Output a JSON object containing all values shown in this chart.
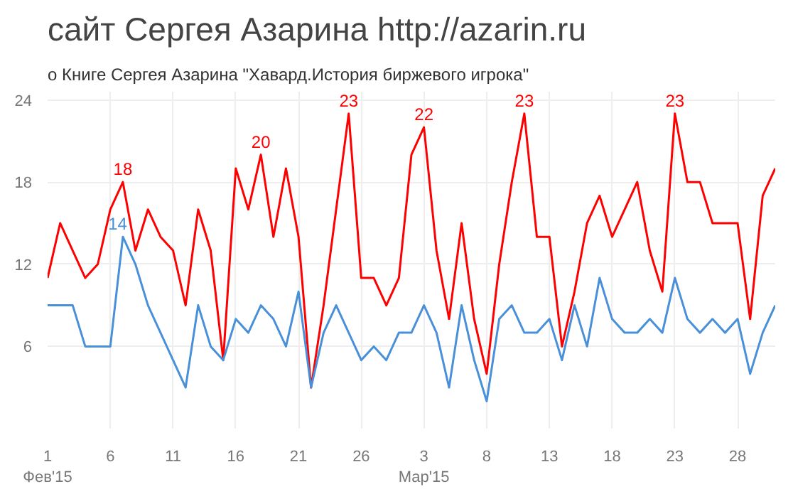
{
  "chart_data": {
    "type": "line",
    "title": "сайт Сергея Азарина http://azarin.ru",
    "subtitle": "о Книге Сергея Азарина \"Хавард.История биржевого игрока\"",
    "x": [
      "2015-02-01",
      "2015-02-02",
      "2015-02-03",
      "2015-02-04",
      "2015-02-05",
      "2015-02-06",
      "2015-02-07",
      "2015-02-08",
      "2015-02-09",
      "2015-02-10",
      "2015-02-11",
      "2015-02-12",
      "2015-02-13",
      "2015-02-14",
      "2015-02-15",
      "2015-02-16",
      "2015-02-17",
      "2015-02-18",
      "2015-02-19",
      "2015-02-20",
      "2015-02-21",
      "2015-02-22",
      "2015-02-23",
      "2015-02-24",
      "2015-02-25",
      "2015-02-26",
      "2015-02-27",
      "2015-02-28",
      "2015-03-01",
      "2015-03-02",
      "2015-03-03",
      "2015-03-04",
      "2015-03-05",
      "2015-03-06",
      "2015-03-07",
      "2015-03-08",
      "2015-03-09",
      "2015-03-10",
      "2015-03-11",
      "2015-03-12",
      "2015-03-13",
      "2015-03-14",
      "2015-03-15",
      "2015-03-16",
      "2015-03-17",
      "2015-03-18",
      "2015-03-19",
      "2015-03-20",
      "2015-03-21",
      "2015-03-22",
      "2015-03-23",
      "2015-03-24",
      "2015-03-25",
      "2015-03-26",
      "2015-03-27",
      "2015-03-28",
      "2015-03-29",
      "2015-03-30",
      "2015-03-31"
    ],
    "series": [
      {
        "color": "#ff0000",
        "values": [
          11,
          15,
          13,
          11,
          12,
          16,
          18,
          13,
          16,
          14,
          13,
          9,
          16,
          13,
          5,
          19,
          16,
          20,
          14,
          19,
          14,
          3,
          9,
          16,
          23,
          11,
          11,
          9,
          11,
          20,
          22,
          13,
          8,
          15,
          8,
          4,
          12,
          18,
          23,
          14,
          14,
          6,
          10,
          15,
          17,
          14,
          16,
          18,
          13,
          10,
          23,
          18,
          18,
          15,
          15,
          15,
          8,
          17,
          19
        ]
      },
      {
        "color": "#4a90d9",
        "values": [
          9,
          9,
          9,
          6,
          6,
          6,
          14,
          12,
          9,
          7,
          5,
          3,
          9,
          6,
          5,
          8,
          7,
          9,
          8,
          6,
          10,
          3,
          7,
          9,
          7,
          5,
          6,
          5,
          7,
          7,
          9,
          7,
          3,
          9,
          5,
          2,
          8,
          9,
          7,
          7,
          8,
          5,
          9,
          6,
          11,
          8,
          7,
          7,
          8,
          7,
          11,
          8,
          7,
          8,
          7,
          8,
          4,
          7,
          9
        ]
      }
    ],
    "xlim": [
      "2015-02-01",
      "2015-03-31"
    ],
    "xticks": [
      {
        "value": "2015-02-01",
        "label": "1\nФев'15"
      },
      {
        "value": "2015-02-06",
        "label": "6"
      },
      {
        "value": "2015-02-11",
        "label": "11"
      },
      {
        "value": "2015-02-16",
        "label": "16"
      },
      {
        "value": "2015-02-21",
        "label": "21"
      },
      {
        "value": "2015-02-26",
        "label": "26"
      },
      {
        "value": "2015-03-03",
        "label": "3\nМар'15"
      },
      {
        "value": "2015-03-08",
        "label": "8"
      },
      {
        "value": "2015-03-13",
        "label": "13"
      },
      {
        "value": "2015-03-18",
        "label": "18"
      },
      {
        "value": "2015-03-23",
        "label": "23"
      },
      {
        "value": "2015-03-28",
        "label": "28"
      }
    ],
    "ylim": [
      0,
      24.6
    ],
    "yticks": [
      6,
      12,
      18,
      24
    ],
    "grid": true,
    "line_style": "solid",
    "marker": "none",
    "annotations": [
      {
        "text": "18",
        "x": "2015-02-07",
        "y": 18
      },
      {
        "text": "14",
        "x": "2015-02-07",
        "y": 14
      },
      {
        "text": "20",
        "x": "2015-02-18",
        "y": 20
      },
      {
        "text": "23",
        "x": "2015-02-25",
        "y": 23
      },
      {
        "text": "22",
        "x": "2015-03-03",
        "y": 22
      },
      {
        "text": "23",
        "x": "2015-03-11",
        "y": 23
      },
      {
        "text": "23",
        "x": "2015-03-23",
        "y": 23
      }
    ]
  }
}
